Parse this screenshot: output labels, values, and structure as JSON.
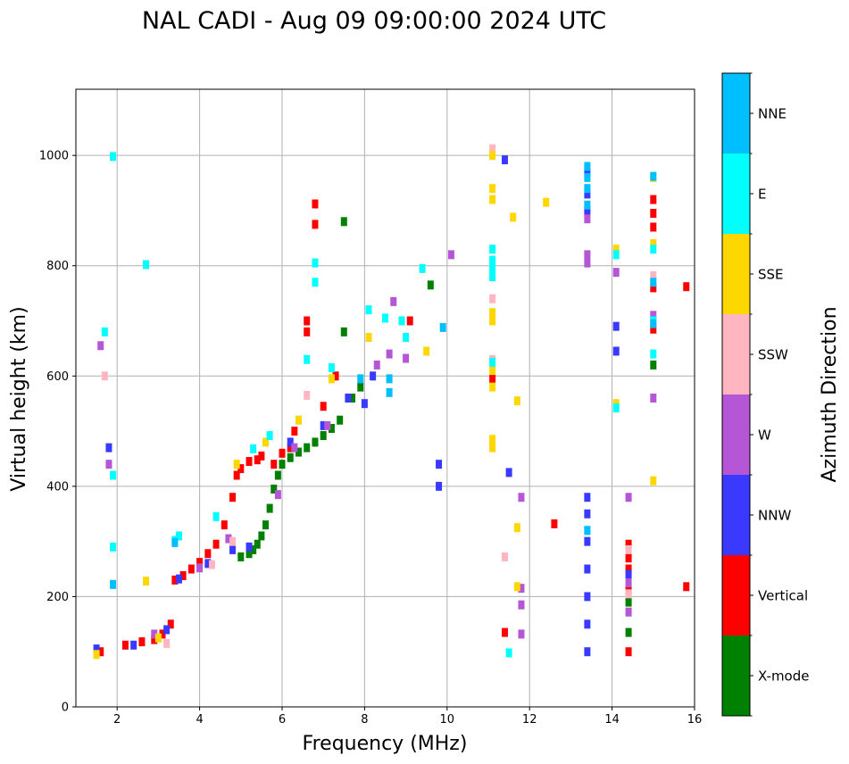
{
  "chart_data": {
    "type": "scatter",
    "title": "NAL CADI - Aug 09 09:00:00 2024 UTC",
    "xlabel": "Frequency (MHz)",
    "ylabel": "Virtual height (km)",
    "xlim": [
      1,
      16
    ],
    "ylim": [
      0,
      1120
    ],
    "xticks": [
      2,
      4,
      6,
      8,
      10,
      12,
      14,
      16
    ],
    "yticks": [
      0,
      200,
      400,
      600,
      800,
      1000
    ],
    "grid": true,
    "colorbar": {
      "label": "Azimuth Direction",
      "categories": [
        {
          "name": "X-mode",
          "color": "#008000"
        },
        {
          "name": "Vertical",
          "color": "#ff0000"
        },
        {
          "name": "NNW",
          "color": "#3a3aff"
        },
        {
          "name": "W",
          "color": "#b556d6"
        },
        {
          "name": "SSW",
          "color": "#ffb6c1"
        },
        {
          "name": "SSE",
          "color": "#ffd700"
        },
        {
          "name": "E",
          "color": "#00ffff"
        },
        {
          "name": "NNE",
          "color": "#00bfff"
        }
      ]
    },
    "series": [
      {
        "name": "X-mode",
        "points": [
          [
            5.0,
            272
          ],
          [
            5.2,
            278
          ],
          [
            5.3,
            285
          ],
          [
            5.4,
            295
          ],
          [
            5.5,
            310
          ],
          [
            5.6,
            330
          ],
          [
            5.7,
            360
          ],
          [
            5.8,
            395
          ],
          [
            5.9,
            420
          ],
          [
            6.0,
            440
          ],
          [
            6.2,
            452
          ],
          [
            6.4,
            462
          ],
          [
            6.6,
            470
          ],
          [
            6.8,
            480
          ],
          [
            7.0,
            492
          ],
          [
            7.2,
            505
          ],
          [
            7.4,
            520
          ],
          [
            7.5,
            880
          ],
          [
            7.5,
            680
          ],
          [
            7.7,
            560
          ],
          [
            7.9,
            580
          ],
          [
            9.6,
            765
          ],
          [
            14.4,
            190
          ],
          [
            14.4,
            135
          ],
          [
            15.0,
            620
          ]
        ]
      },
      {
        "name": "Vertical",
        "points": [
          [
            1.6,
            100
          ],
          [
            2.2,
            112
          ],
          [
            2.6,
            118
          ],
          [
            2.9,
            122
          ],
          [
            3.1,
            132
          ],
          [
            3.3,
            150
          ],
          [
            3.4,
            230
          ],
          [
            3.6,
            238
          ],
          [
            3.8,
            250
          ],
          [
            4.0,
            262
          ],
          [
            4.2,
            278
          ],
          [
            4.4,
            295
          ],
          [
            4.6,
            330
          ],
          [
            4.8,
            380
          ],
          [
            4.9,
            420
          ],
          [
            5.0,
            432
          ],
          [
            5.2,
            445
          ],
          [
            5.4,
            448
          ],
          [
            5.5,
            455
          ],
          [
            5.8,
            440
          ],
          [
            6.0,
            460
          ],
          [
            6.2,
            470
          ],
          [
            6.3,
            500
          ],
          [
            6.6,
            700
          ],
          [
            6.6,
            680
          ],
          [
            6.8,
            912
          ],
          [
            6.8,
            875
          ],
          [
            7.0,
            545
          ],
          [
            7.3,
            600
          ],
          [
            9.1,
            700
          ],
          [
            11.1,
            595
          ],
          [
            11.4,
            135
          ],
          [
            12.6,
            332
          ],
          [
            14.4,
            295
          ],
          [
            14.4,
            270
          ],
          [
            14.4,
            250
          ],
          [
            14.4,
            210
          ],
          [
            14.4,
            100
          ],
          [
            15.0,
            920
          ],
          [
            15.0,
            895
          ],
          [
            15.0,
            870
          ],
          [
            15.0,
            760
          ],
          [
            15.0,
            685
          ],
          [
            15.8,
            762
          ],
          [
            15.8,
            218
          ]
        ]
      },
      {
        "name": "NNW",
        "points": [
          [
            1.5,
            105
          ],
          [
            1.8,
            470
          ],
          [
            2.4,
            112
          ],
          [
            3.2,
            140
          ],
          [
            3.5,
            232
          ],
          [
            4.2,
            260
          ],
          [
            4.8,
            285
          ],
          [
            5.2,
            290
          ],
          [
            6.2,
            480
          ],
          [
            7.0,
            510
          ],
          [
            7.6,
            560
          ],
          [
            8.0,
            550
          ],
          [
            8.2,
            600
          ],
          [
            9.8,
            440
          ],
          [
            9.8,
            400
          ],
          [
            11.4,
            992
          ],
          [
            11.5,
            425
          ],
          [
            13.4,
            970
          ],
          [
            13.4,
            930
          ],
          [
            13.4,
            900
          ],
          [
            13.4,
            380
          ],
          [
            13.4,
            350
          ],
          [
            13.4,
            300
          ],
          [
            13.4,
            250
          ],
          [
            13.4,
            200
          ],
          [
            13.4,
            150
          ],
          [
            13.4,
            100
          ],
          [
            14.1,
            690
          ],
          [
            14.1,
            645
          ],
          [
            14.4,
            240
          ]
        ]
      },
      {
        "name": "W",
        "points": [
          [
            1.6,
            655
          ],
          [
            1.8,
            440
          ],
          [
            2.9,
            132
          ],
          [
            4.0,
            252
          ],
          [
            4.7,
            305
          ],
          [
            5.9,
            385
          ],
          [
            6.3,
            470
          ],
          [
            7.1,
            510
          ],
          [
            8.3,
            620
          ],
          [
            8.6,
            640
          ],
          [
            8.7,
            735
          ],
          [
            9.0,
            632
          ],
          [
            10.1,
            820
          ],
          [
            11.8,
            380
          ],
          [
            11.8,
            215
          ],
          [
            11.8,
            185
          ],
          [
            11.8,
            132
          ],
          [
            13.4,
            885
          ],
          [
            13.4,
            820
          ],
          [
            13.4,
            805
          ],
          [
            14.1,
            788
          ],
          [
            14.4,
            380
          ],
          [
            14.4,
            225
          ],
          [
            14.4,
            172
          ],
          [
            15.0,
            710
          ],
          [
            15.0,
            560
          ]
        ]
      },
      {
        "name": "SSW",
        "points": [
          [
            1.7,
            600
          ],
          [
            3.2,
            115
          ],
          [
            4.3,
            258
          ],
          [
            4.8,
            300
          ],
          [
            6.6,
            565
          ],
          [
            11.1,
            1012
          ],
          [
            11.1,
            740
          ],
          [
            11.1,
            630
          ],
          [
            11.4,
            272
          ],
          [
            14.4,
            285
          ],
          [
            14.4,
            205
          ],
          [
            15.0,
            782
          ]
        ]
      },
      {
        "name": "SSE",
        "points": [
          [
            1.5,
            95
          ],
          [
            2.7,
            228
          ],
          [
            3.0,
            125
          ],
          [
            4.9,
            440
          ],
          [
            5.6,
            480
          ],
          [
            6.4,
            520
          ],
          [
            7.2,
            595
          ],
          [
            8.1,
            670
          ],
          [
            9.5,
            645
          ],
          [
            11.1,
            1000
          ],
          [
            11.1,
            940
          ],
          [
            11.1,
            920
          ],
          [
            11.1,
            715
          ],
          [
            11.1,
            700
          ],
          [
            11.1,
            610
          ],
          [
            11.1,
            580
          ],
          [
            11.1,
            485
          ],
          [
            11.1,
            470
          ],
          [
            11.6,
            888
          ],
          [
            11.7,
            325
          ],
          [
            11.7,
            218
          ],
          [
            11.7,
            555
          ],
          [
            12.4,
            915
          ],
          [
            14.1,
            550
          ],
          [
            14.1,
            830
          ],
          [
            15.0,
            960
          ],
          [
            15.0,
            840
          ],
          [
            15.0,
            410
          ]
        ]
      },
      {
        "name": "E",
        "points": [
          [
            1.7,
            680
          ],
          [
            1.9,
            420
          ],
          [
            1.9,
            290
          ],
          [
            1.9,
            998
          ],
          [
            2.7,
            802
          ],
          [
            3.4,
            302
          ],
          [
            3.5,
            310
          ],
          [
            4.4,
            345
          ],
          [
            5.3,
            468
          ],
          [
            5.7,
            492
          ],
          [
            6.6,
            630
          ],
          [
            6.8,
            805
          ],
          [
            6.8,
            770
          ],
          [
            7.2,
            615
          ],
          [
            8.1,
            720
          ],
          [
            8.5,
            705
          ],
          [
            8.9,
            700
          ],
          [
            9.0,
            670
          ],
          [
            9.4,
            795
          ],
          [
            11.1,
            830
          ],
          [
            11.1,
            810
          ],
          [
            11.1,
            795
          ],
          [
            11.1,
            780
          ],
          [
            11.1,
            625
          ],
          [
            11.5,
            98
          ],
          [
            13.4,
            320
          ],
          [
            14.1,
            820
          ],
          [
            14.1,
            542
          ],
          [
            15.0,
            830
          ],
          [
            15.0,
            700
          ],
          [
            15.0,
            640
          ]
        ]
      },
      {
        "name": "NNE",
        "points": [
          [
            1.9,
            222
          ],
          [
            3.4,
            298
          ],
          [
            7.9,
            595
          ],
          [
            8.6,
            595
          ],
          [
            8.6,
            570
          ],
          [
            9.9,
            688
          ],
          [
            13.4,
            980
          ],
          [
            13.4,
            960
          ],
          [
            13.4,
            940
          ],
          [
            13.4,
            910
          ],
          [
            13.4,
            320
          ],
          [
            15.0,
            962
          ],
          [
            15.0,
            770
          ],
          [
            15.0,
            695
          ]
        ]
      }
    ]
  }
}
